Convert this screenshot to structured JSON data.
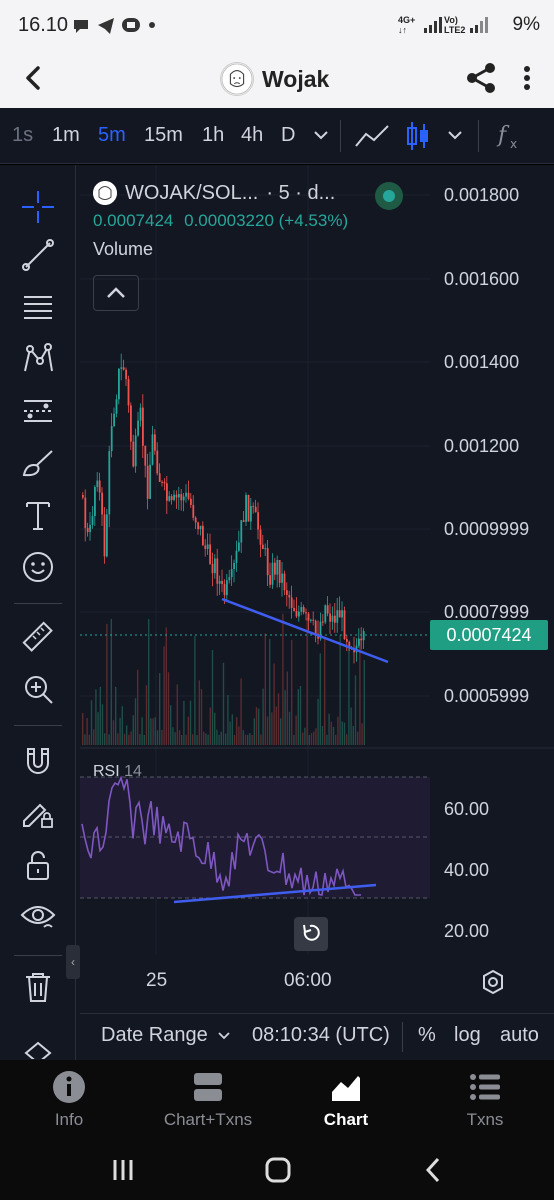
{
  "status_bar": {
    "time": "16.10",
    "net1": "4G+",
    "net2": "Vo) LTE2",
    "battery": "9%"
  },
  "header": {
    "title": "Wojak"
  },
  "toolbar": {
    "timeframes": [
      "1s",
      "1m",
      "5m",
      "15m",
      "1h",
      "4h",
      "D"
    ],
    "selected_timeframe": "5m",
    "indicators_icon": "fx-icon"
  },
  "legend": {
    "symbol": "WOJAK/SOL...",
    "interval": "· 5 · d...",
    "price": "0.0007424",
    "change": "0.00003220 (+4.53%)",
    "volume_label": "Volume"
  },
  "price_axis": {
    "labels": [
      "0.001800",
      "0.001600",
      "0.001400",
      "0.001200",
      "0.0009999",
      "0.0007999",
      "0.0005999"
    ],
    "current_price": "0.0007424"
  },
  "rsi": {
    "label": "RSI",
    "period": "14",
    "axis": [
      "60.00",
      "40.00",
      "20.00"
    ]
  },
  "time_axis": [
    "25",
    "06:00"
  ],
  "bottom_bar": {
    "date_range": "Date Range",
    "clock": "08:10:34 (UTC)",
    "percent": "%",
    "log": "log",
    "auto": "auto"
  },
  "bottom_nav": [
    {
      "label": "Info",
      "active": false
    },
    {
      "label": "Chart+Txns",
      "active": false
    },
    {
      "label": "Chart",
      "active": true
    },
    {
      "label": "Txns",
      "active": false
    }
  ],
  "colors": {
    "up": "#26a69a",
    "down": "#ef5350",
    "accent": "#2962ff",
    "rsi_line": "#7e57c2",
    "trendline": "#3f5ef0"
  }
}
